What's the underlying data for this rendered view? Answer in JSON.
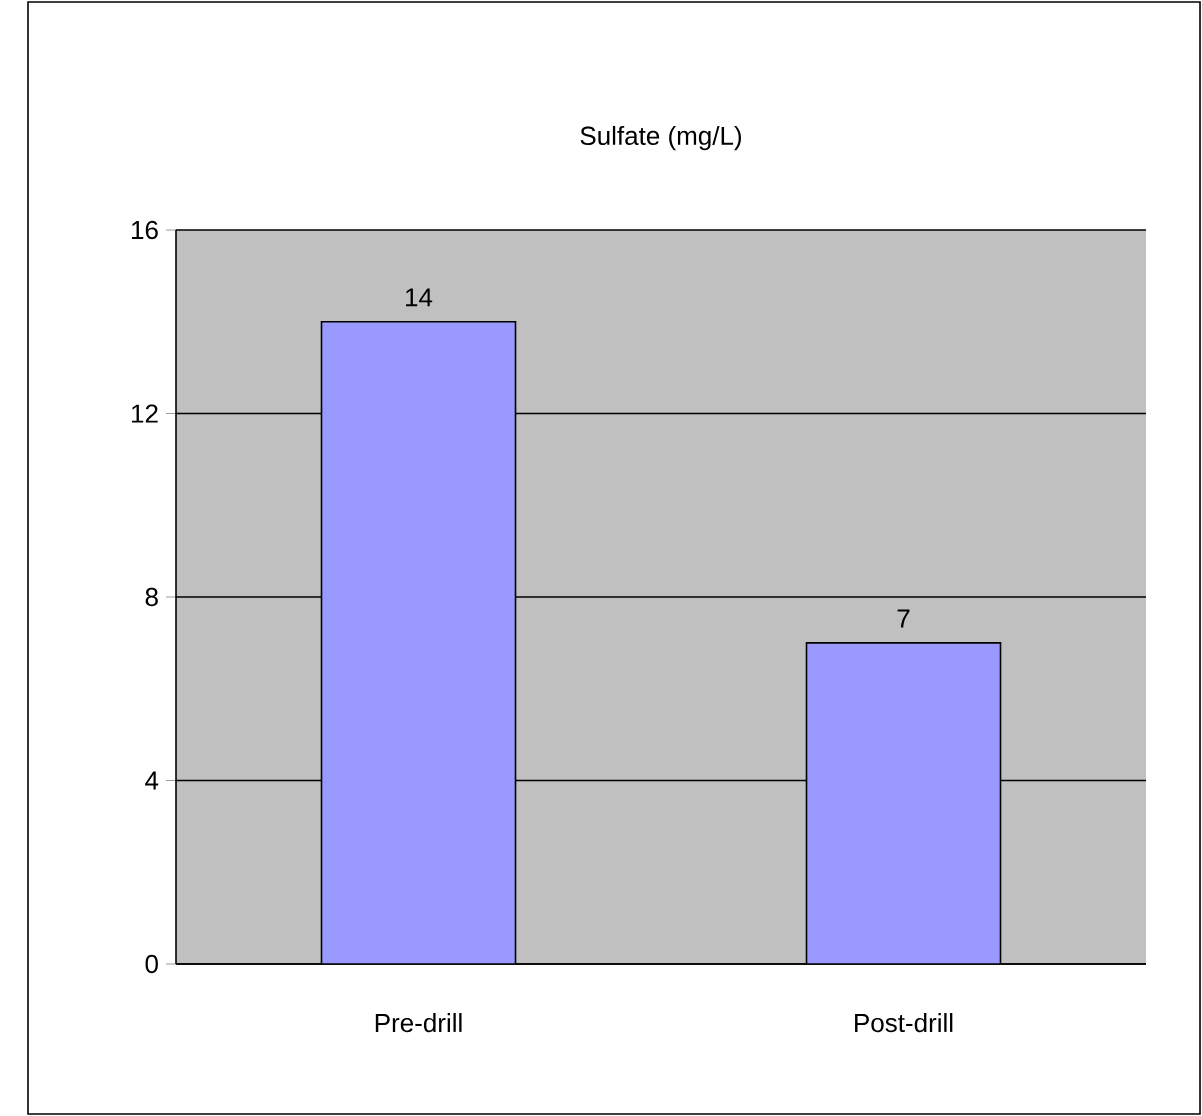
{
  "chart_data": {
    "type": "bar",
    "title": "Sulfate (mg/L)",
    "categories": [
      "Pre-drill",
      "Post-drill"
    ],
    "values": [
      14,
      7
    ],
    "color": "#9999ff",
    "ylim": [
      0,
      16
    ],
    "yticks": [
      0,
      4,
      8,
      12,
      16
    ],
    "grid": "y",
    "data_labels": true
  }
}
